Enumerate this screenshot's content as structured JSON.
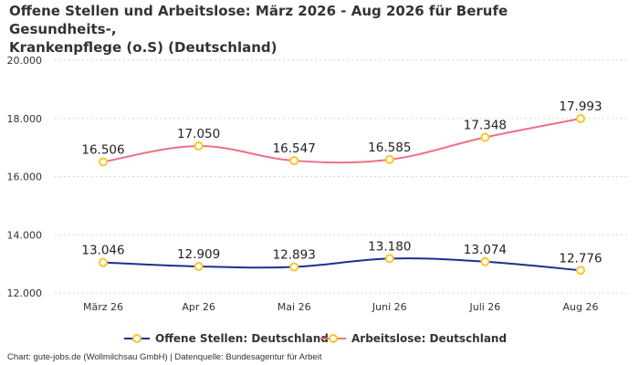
{
  "chart_data": {
    "type": "line",
    "title_lines": [
      "Offene Stellen und Arbeitslose: März 2026 - Aug 2026 für Berufe Gesundheits-,",
      "Krankenpflege (o.S) (Deutschland)"
    ],
    "categories": [
      "März 26",
      "Apr 26",
      "Mai 26",
      "Juni 26",
      "Juli 26",
      "Aug 26"
    ],
    "y_ticks": [
      12000,
      14000,
      16000,
      18000,
      20000
    ],
    "y_tick_labels": [
      "12.000",
      "14.000",
      "16.000",
      "18.000",
      "20.000"
    ],
    "ylim": [
      12000,
      20000
    ],
    "grid": true,
    "legend_position": "bottom",
    "series": [
      {
        "name": "Offene Stellen: Deutschland",
        "color": "#1f2f8f",
        "values": [
          13046,
          12909,
          12893,
          13180,
          13074,
          12776
        ],
        "labels": [
          "13.046",
          "12.909",
          "12.893",
          "13.180",
          "13.074",
          "12.776"
        ]
      },
      {
        "name": "Arbeitslose: Deutschland",
        "color": "#f06f86",
        "values": [
          16506,
          17050,
          16547,
          16585,
          17348,
          17993
        ],
        "labels": [
          "16.506",
          "17.050",
          "16.547",
          "16.585",
          "17.348",
          "17.993"
        ]
      }
    ],
    "marker_color": "#f7c72c"
  },
  "credits": "Chart: gute-jobs.de (Wollmilchsau GmbH) | Datenquelle: Bundesagentur für Arbeit"
}
